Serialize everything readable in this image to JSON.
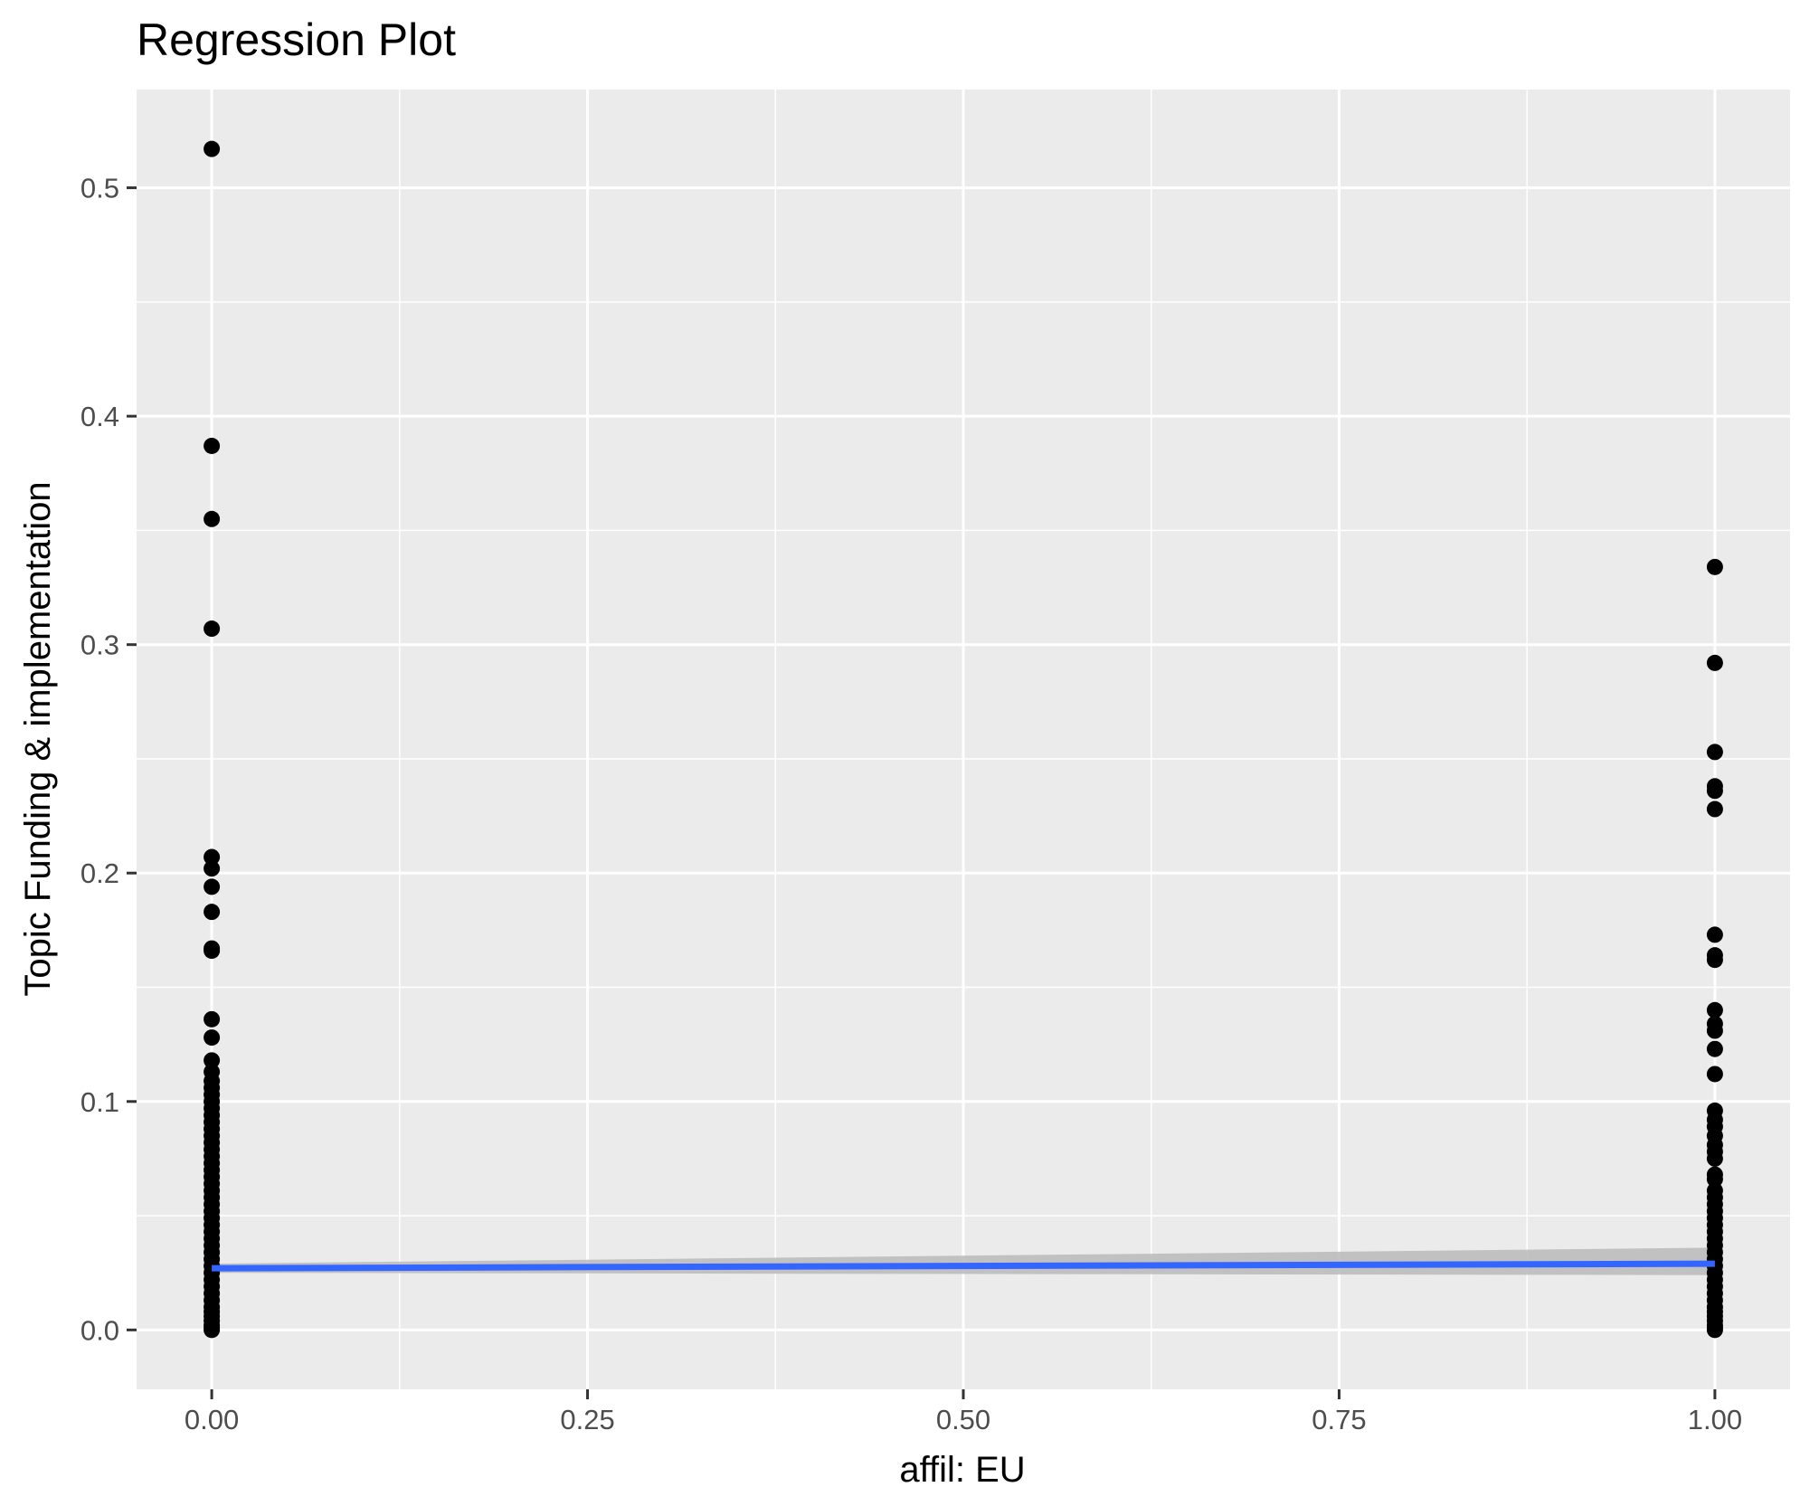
{
  "chart_data": {
    "type": "scatter",
    "title": "Regression Plot",
    "xlabel": "affil: EU",
    "ylabel": "Topic Funding & implementation",
    "xlim": [
      -0.05,
      1.05
    ],
    "ylim": [
      -0.026,
      0.543
    ],
    "x_ticks": [
      "0.00",
      "0.25",
      "0.50",
      "0.75",
      "1.00"
    ],
    "y_ticks": [
      "0.0",
      "0.1",
      "0.2",
      "0.3",
      "0.4",
      "0.5"
    ],
    "grid": true,
    "legend": "none",
    "colors": {
      "panel_background": "#ebebeb",
      "grid": "#ffffff",
      "points": "#000000",
      "fit_line": "#3366ff",
      "confidence_band": "#bdbdbd"
    },
    "series": [
      {
        "x": 0,
        "values": [
          0.517,
          0.387,
          0.355,
          0.307,
          0.207,
          0.202,
          0.194,
          0.183,
          0.167,
          0.166,
          0.136,
          0.128,
          0.118,
          0.113,
          0.109,
          0.106,
          0.103,
          0.1,
          0.097,
          0.094,
          0.091,
          0.088,
          0.085,
          0.082,
          0.079,
          0.076,
          0.073,
          0.07,
          0.067,
          0.064,
          0.061,
          0.058,
          0.055,
          0.052,
          0.049,
          0.046,
          0.043,
          0.04,
          0.037,
          0.034,
          0.031,
          0.028,
          0.025,
          0.022,
          0.019,
          0.016,
          0.013,
          0.01,
          0.008,
          0.006,
          0.004,
          0.002,
          0.001,
          0.0
        ]
      },
      {
        "x": 1,
        "values": [
          0.334,
          0.292,
          0.253,
          0.238,
          0.236,
          0.228,
          0.173,
          0.164,
          0.162,
          0.14,
          0.134,
          0.131,
          0.123,
          0.112,
          0.096,
          0.092,
          0.089,
          0.085,
          0.081,
          0.078,
          0.075,
          0.068,
          0.066,
          0.061,
          0.058,
          0.055,
          0.052,
          0.049,
          0.046,
          0.043,
          0.04,
          0.037,
          0.034,
          0.031,
          0.028,
          0.025,
          0.022,
          0.019,
          0.016,
          0.013,
          0.01,
          0.008,
          0.006,
          0.004,
          0.002,
          0.001,
          0.0
        ]
      }
    ],
    "regression": {
      "x": [
        0,
        1
      ],
      "y": [
        0.027,
        0.029
      ],
      "ci_low": [
        0.025,
        0.024
      ],
      "ci_high": [
        0.029,
        0.036
      ]
    }
  }
}
